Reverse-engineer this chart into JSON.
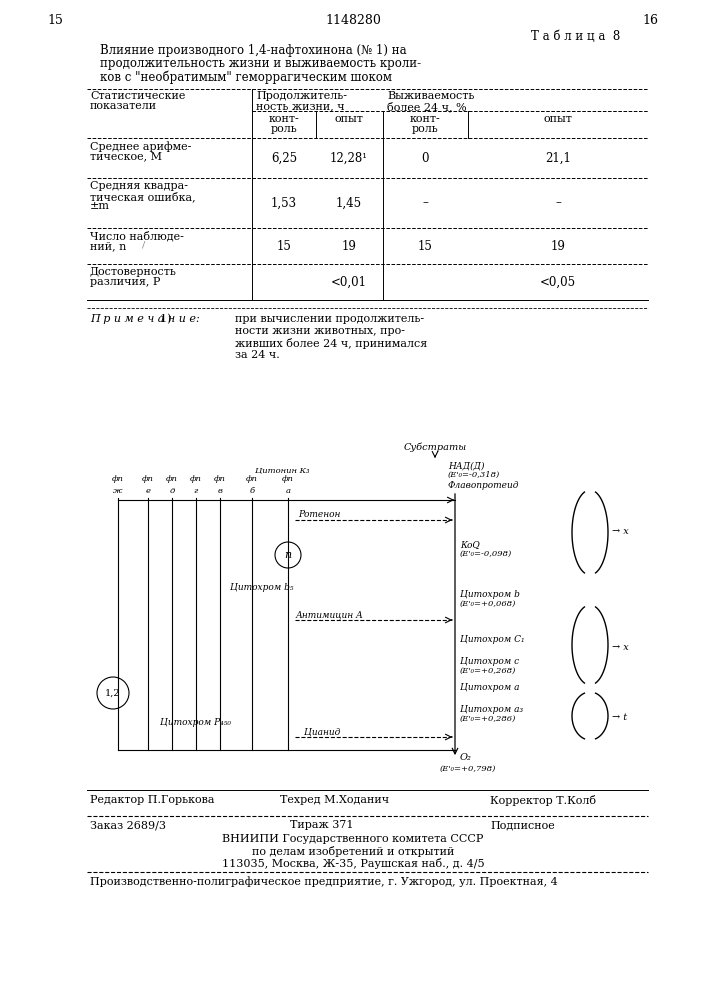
{
  "page_color": "#ffffff",
  "title_top_left": "15",
  "title_center": "1148280",
  "title_top_right": "16",
  "table_title_label": "Т а б л и ц а  8",
  "table_caption_line1": "Влияние производного 1,4-нафтохинона (№ 1) на",
  "table_caption_line2": "продолжительность жизни и выживаемость кроли-",
  "table_caption_line3": "ков с \"необратимым\" геморрагическим шоком",
  "col_header_1a": "Статистические",
  "col_header_1b": "показатели",
  "col_header_2a": "Продолжитель-",
  "col_header_2b": "ность жизни, ч",
  "col_header_3a": "Выживаемость",
  "col_header_3b": "более 24 ч, %",
  "subheader_k": "конт-",
  "subheader_k2": "роль",
  "subheader_o": "опыт",
  "rows": [
    {
      "label1": "Среднее арифме-",
      "label2": "тическое, М",
      "label3": "",
      "v1": "6,25",
      "v2": "12,28¹",
      "v3": "0",
      "v4": "21,1"
    },
    {
      "label1": "Средняя квадра-",
      "label2": "тическая ошибка,",
      "label3": "±m",
      "v1": "1,53",
      "v2": "1,45",
      "v3": "–",
      "v4": "–"
    },
    {
      "label1": "Число наблюде-",
      "label2": "ний, n",
      "label3": "",
      "v1": "15",
      "v2": "19",
      "v3": "15",
      "v4": "19"
    },
    {
      "label1": "Достоверность",
      "label2": "различия, Р",
      "label3": "",
      "v1": "",
      "v2": "<0,01",
      "v3": "",
      "v4": "<0,05"
    }
  ],
  "note_prefix": "П р и м е ч а н и е:",
  "note_num": "1)",
  "note_line1": "при вычислении продолжитель-",
  "note_line2": "ности жизни животных, про-",
  "note_line3": "живших более 24 ч, принимался",
  "note_line4": "за 24 ч.",
  "editor_left": "Редактор П.Горькова",
  "editor_mid": "Техред М.Ходанич",
  "editor_right": "Корректор Т.Колб",
  "order_left": "Заказ 2689/3",
  "order_mid": "Тираж 371",
  "order_right": "Подписное",
  "order_line2": "ВНИИПИ Государственного комитета СССР",
  "order_line3": "по делам изобретений и открытий",
  "order_line4": "113035, Москва, Ж-35, Раушская наб., д. 4/5",
  "footer_line": "Производственно-полиграфическое предприятие, г. Ужгород, ул. Проектная, 4"
}
